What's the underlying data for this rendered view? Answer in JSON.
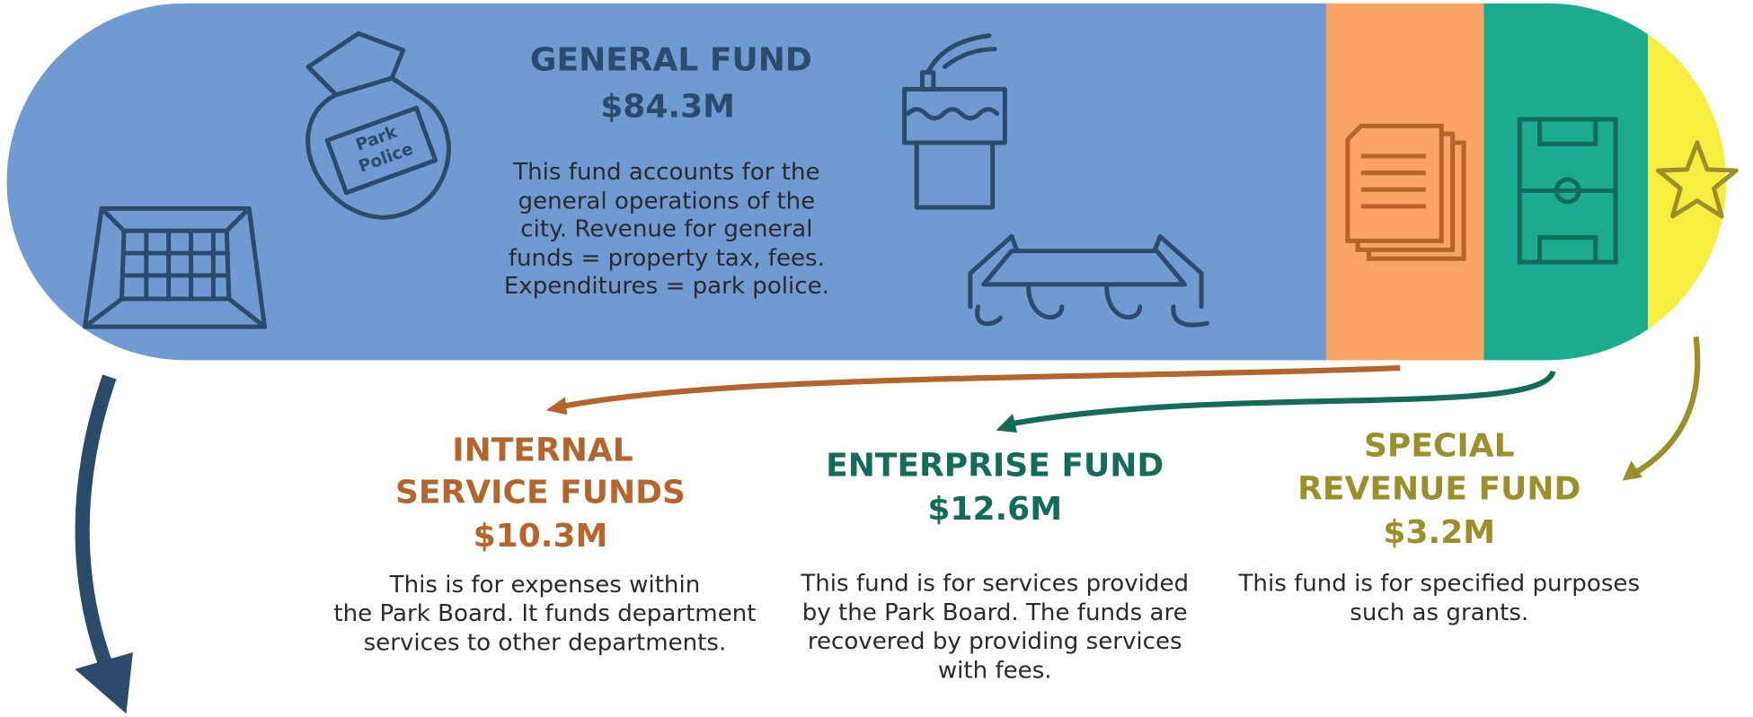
{
  "general_fund": {
    "title": "GENERAL FUND",
    "amount": "$84.3M",
    "description": [
      "This fund accounts for the",
      "general operations of the",
      "city. Revenue for general",
      "funds = property tax, fees.",
      "Expenditures = park police."
    ],
    "badge": [
      "Park",
      "Police"
    ]
  },
  "internal_service_funds": {
    "title": [
      "INTERNAL",
      "SERVICE FUNDS"
    ],
    "amount": "$10.3M",
    "description": [
      "This is for expenses within",
      "the Park Board. It funds department",
      "services to other departments."
    ]
  },
  "enterprise_fund": {
    "title": "ENTERPRISE FUND",
    "amount": "$12.6M",
    "description": [
      "This fund is for services provided",
      "by the Park Board. The funds are",
      "recovered by providing services",
      "with fees."
    ]
  },
  "special_revenue_fund": {
    "title": [
      "SPECIAL",
      "REVENUE FUND"
    ],
    "amount": "$3.2M",
    "description": [
      "This fund is for specified purposes",
      "such as grants."
    ]
  }
}
